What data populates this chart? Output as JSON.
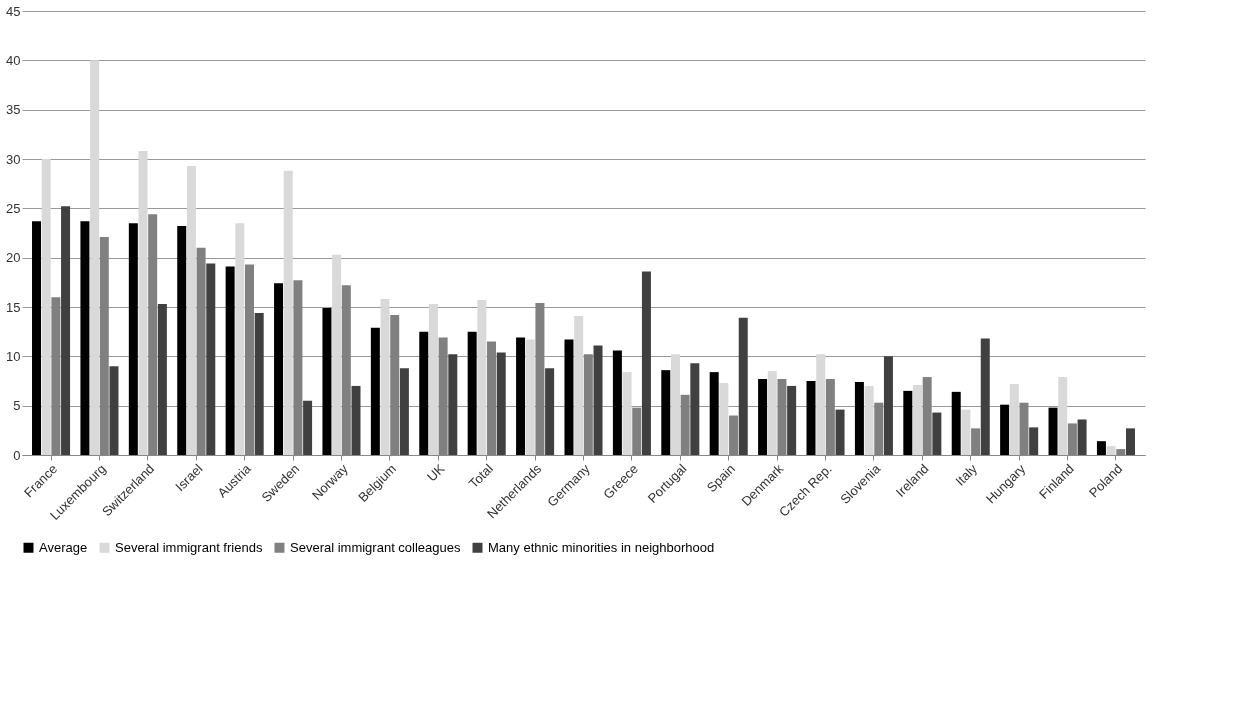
{
  "chart_data": {
    "type": "bar",
    "categories": [
      "France",
      "Luxembourg",
      "Switzerland",
      "Israel",
      "Austria",
      "Sweden",
      "Norway",
      "Belgium",
      "UK",
      "Total",
      "Netherlands",
      "Germany",
      "Greece",
      "Portugal",
      "Spain",
      "Denmark",
      "Czech Rep.",
      "Slovenia",
      "Ireland",
      "Italy",
      "Hungary",
      "Finland",
      "Poland"
    ],
    "series": [
      {
        "name": "Average",
        "color": "#000000",
        "values": [
          23.7,
          23.7,
          23.5,
          23.2,
          19.1,
          17.4,
          14.9,
          12.9,
          12.5,
          12.5,
          11.9,
          11.7,
          10.6,
          8.6,
          8.4,
          7.7,
          7.5,
          7.4,
          6.5,
          6.4,
          5.1,
          4.8,
          1.4
        ]
      },
      {
        "name": "Several immigrant friends",
        "color": "#d9d9d9",
        "values": [
          30,
          40,
          30.8,
          29.3,
          23.5,
          28.8,
          20.3,
          15.8,
          15.3,
          15.7,
          11.7,
          14.1,
          8.4,
          10.2,
          7.3,
          8.5,
          10.2,
          7,
          7.1,
          4.6,
          7.2,
          7.9,
          0.9
        ]
      },
      {
        "name": "Several immigrant colleagues",
        "color": "#808080",
        "values": [
          16,
          22.1,
          24.4,
          21,
          19.3,
          17.7,
          17.2,
          14.2,
          11.9,
          11.5,
          15.4,
          10.2,
          4.8,
          6.1,
          4,
          7.7,
          7.7,
          5.3,
          7.9,
          2.7,
          5.3,
          3.2,
          0.6
        ]
      },
      {
        "name": "Many ethnic minorities in neighborhood",
        "color": "#404040",
        "values": [
          25.2,
          9,
          15.3,
          19.4,
          14.4,
          5.5,
          7,
          8.8,
          10.2,
          10.4,
          8.8,
          11.1,
          18.6,
          9.3,
          13.9,
          7,
          4.6,
          10,
          4.3,
          11.8,
          2.8,
          3.6,
          2.7
        ]
      }
    ],
    "ylim": [
      0,
      45
    ],
    "yticks": [
      0,
      5,
      10,
      15,
      20,
      25,
      30,
      35,
      40,
      45
    ],
    "grid": "y",
    "legend": "bottom"
  }
}
